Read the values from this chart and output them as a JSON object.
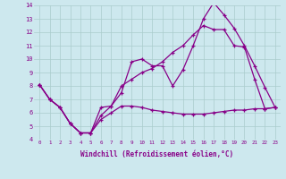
{
  "xlabel": "Windchill (Refroidissement éolien,°C)",
  "bg_color": "#cde8ee",
  "grid_color": "#aacccc",
  "line_color": "#880088",
  "xlim": [
    -0.5,
    23.5
  ],
  "ylim": [
    4,
    14
  ],
  "xticks": [
    0,
    1,
    2,
    3,
    4,
    5,
    6,
    7,
    8,
    9,
    10,
    11,
    12,
    13,
    14,
    15,
    16,
    17,
    18,
    19,
    20,
    21,
    22,
    23
  ],
  "yticks": [
    4,
    5,
    6,
    7,
    8,
    9,
    10,
    11,
    12,
    13,
    14
  ],
  "line1_x": [
    0,
    1,
    2,
    3,
    4,
    5,
    6,
    7,
    8,
    9,
    10,
    11,
    12,
    13,
    14,
    15,
    16,
    17,
    18,
    19,
    20,
    21,
    22,
    23
  ],
  "line1_y": [
    8.1,
    7.0,
    6.4,
    5.2,
    4.5,
    4.5,
    6.4,
    6.5,
    7.5,
    9.8,
    10.0,
    9.5,
    9.5,
    8.0,
    9.2,
    11.0,
    13.0,
    14.2,
    13.3,
    12.3,
    11.0,
    9.5,
    7.9,
    6.4
  ],
  "line2_x": [
    0,
    1,
    2,
    3,
    4,
    5,
    6,
    7,
    8,
    9,
    10,
    11,
    12,
    13,
    14,
    15,
    16,
    17,
    18,
    19,
    20,
    21,
    22,
    23
  ],
  "line2_y": [
    8.1,
    7.0,
    6.4,
    5.2,
    4.5,
    4.5,
    5.8,
    6.5,
    8.0,
    8.5,
    9.0,
    9.3,
    9.8,
    10.5,
    11.0,
    11.8,
    12.5,
    12.2,
    12.2,
    11.0,
    10.9,
    8.5,
    6.3,
    6.4
  ],
  "line3_x": [
    0,
    1,
    2,
    3,
    4,
    5,
    6,
    7,
    8,
    9,
    10,
    11,
    12,
    13,
    14,
    15,
    16,
    17,
    18,
    19,
    20,
    21,
    22,
    23
  ],
  "line3_y": [
    8.1,
    7.0,
    6.4,
    5.2,
    4.5,
    4.5,
    5.5,
    6.0,
    6.5,
    6.5,
    6.4,
    6.2,
    6.1,
    6.0,
    5.9,
    5.9,
    5.9,
    6.0,
    6.1,
    6.2,
    6.2,
    6.3,
    6.3,
    6.4
  ]
}
